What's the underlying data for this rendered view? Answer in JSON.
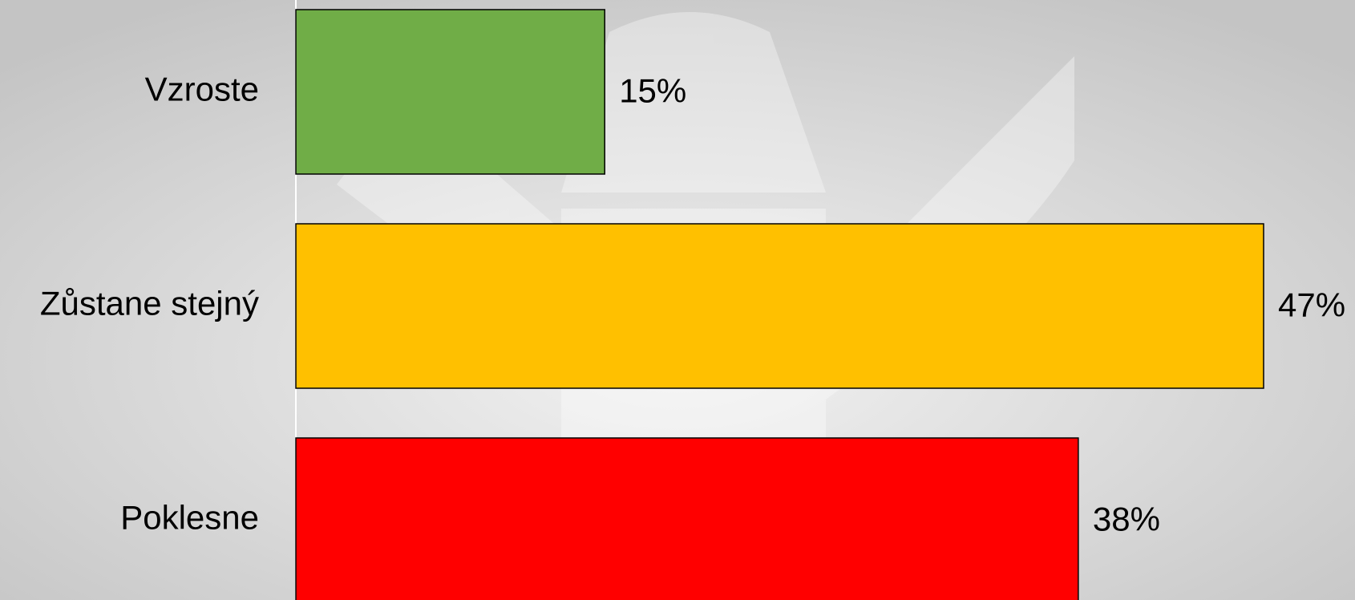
{
  "chart_data": {
    "type": "bar",
    "orientation": "horizontal",
    "categories": [
      "Vzroste",
      "Zůstane stejný",
      "Poklesne"
    ],
    "values": [
      15,
      47,
      38
    ],
    "value_labels": [
      "15%",
      "47%",
      "38%"
    ],
    "colors": [
      "#70ad47",
      "#ffc000",
      "#ff0000"
    ]
  }
}
